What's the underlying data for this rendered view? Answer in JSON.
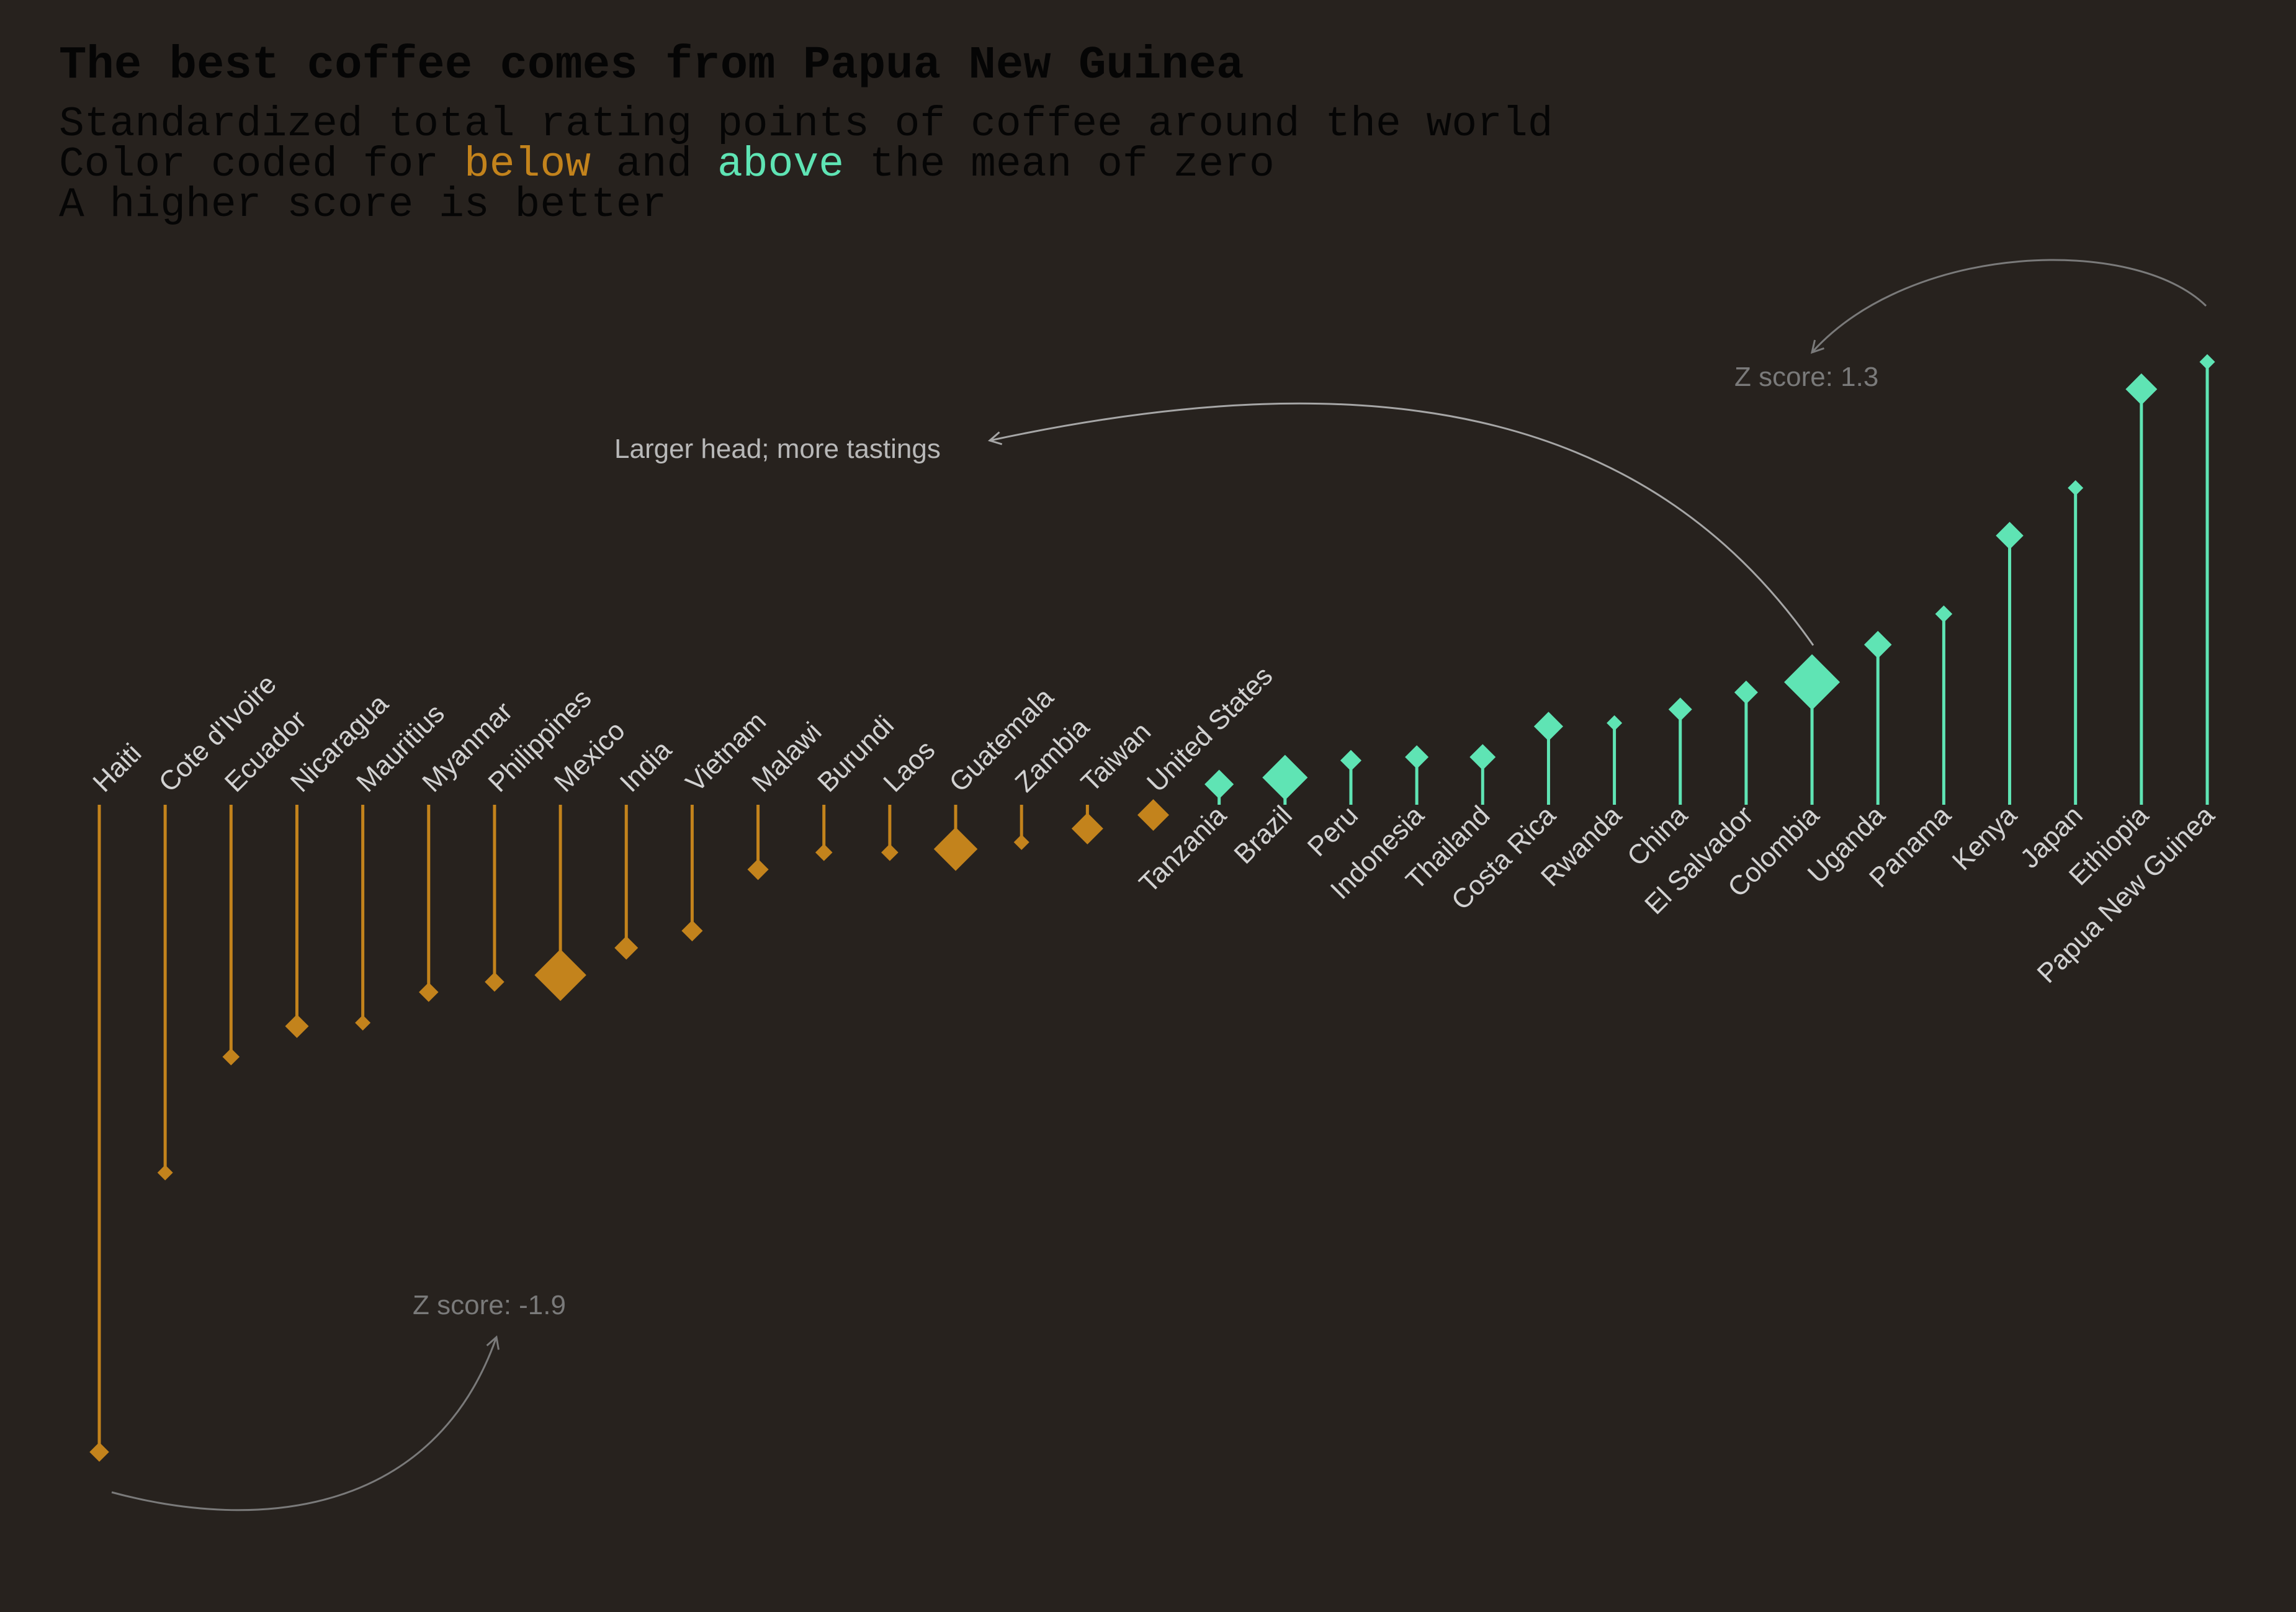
{
  "chart_data": {
    "type": "lollipop",
    "title": "The best coffee comes from Papua New Guinea",
    "subtitle": {
      "line1": "Standardized total rating points of coffee around the world",
      "line2_pre": "Color coded for ",
      "line2_below": "below",
      "line2_mid": " and ",
      "line2_above": "above",
      "line2_post": " the mean of zero",
      "line3": "A higher score is better"
    },
    "colors": {
      "below": "#c3831c",
      "above": "#5fe4b4",
      "background": "#27221e",
      "annotation": "#a6a6a6",
      "z_annotation": "#7a7a7a"
    },
    "ylim": [
      -2.2,
      1.6
    ],
    "size_meaning": "Larger head; more tastings",
    "points": [
      {
        "country": "Haiti",
        "z": -1.9,
        "size": 1.5
      },
      {
        "country": "Cote d'Ivoire",
        "z": -1.08,
        "size": 1
      },
      {
        "country": "Ecuador",
        "z": -0.74,
        "size": 1.2
      },
      {
        "country": "Nicaragua",
        "z": -0.65,
        "size": 2
      },
      {
        "country": "Mauritius",
        "z": -0.64,
        "size": 1
      },
      {
        "country": "Myanmar",
        "z": -0.55,
        "size": 1.5
      },
      {
        "country": "Philippines",
        "z": -0.52,
        "size": 1.5
      },
      {
        "country": "Mexico",
        "z": -0.5,
        "size": 5.5
      },
      {
        "country": "India",
        "z": -0.42,
        "size": 2
      },
      {
        "country": "Vietnam",
        "z": -0.37,
        "size": 1.7
      },
      {
        "country": "Malawi",
        "z": -0.19,
        "size": 1.7
      },
      {
        "country": "Burundi",
        "z": -0.14,
        "size": 1.2
      },
      {
        "country": "Laos",
        "z": -0.14,
        "size": 1.2
      },
      {
        "country": "Guatemala",
        "z": -0.13,
        "size": 4.5
      },
      {
        "country": "Zambia",
        "z": -0.11,
        "size": 1
      },
      {
        "country": "Taiwan",
        "z": -0.07,
        "size": 3
      },
      {
        "country": "United States",
        "z": -0.03,
        "size": 3
      },
      {
        "country": "Tanzania",
        "z": 0.06,
        "size": 2.7
      },
      {
        "country": "Brazil",
        "z": 0.08,
        "size": 4.7
      },
      {
        "country": "Peru",
        "z": 0.13,
        "size": 1.7
      },
      {
        "country": "Indonesia",
        "z": 0.14,
        "size": 2
      },
      {
        "country": "Thailand",
        "z": 0.14,
        "size": 2.3
      },
      {
        "country": "Costa Rica",
        "z": 0.23,
        "size": 2.7
      },
      {
        "country": "Rwanda",
        "z": 0.24,
        "size": 1
      },
      {
        "country": "China",
        "z": 0.28,
        "size": 2
      },
      {
        "country": "El Salvador",
        "z": 0.33,
        "size": 2
      },
      {
        "country": "Colombia",
        "z": 0.36,
        "size": 6
      },
      {
        "country": "Uganda",
        "z": 0.47,
        "size": 2.5
      },
      {
        "country": "Panama",
        "z": 0.56,
        "size": 1.2
      },
      {
        "country": "Kenya",
        "z": 0.79,
        "size": 2.5
      },
      {
        "country": "Japan",
        "z": 0.93,
        "size": 1
      },
      {
        "country": "Ethiopia",
        "z": 1.22,
        "size": 3
      },
      {
        "country": "Papua New Guinea",
        "z": 1.3,
        "size": 1
      }
    ],
    "annotations": {
      "max_label": "Z score: 1.3",
      "min_label": "Z score: -1.9",
      "size_label": "Larger head; more tastings"
    }
  }
}
